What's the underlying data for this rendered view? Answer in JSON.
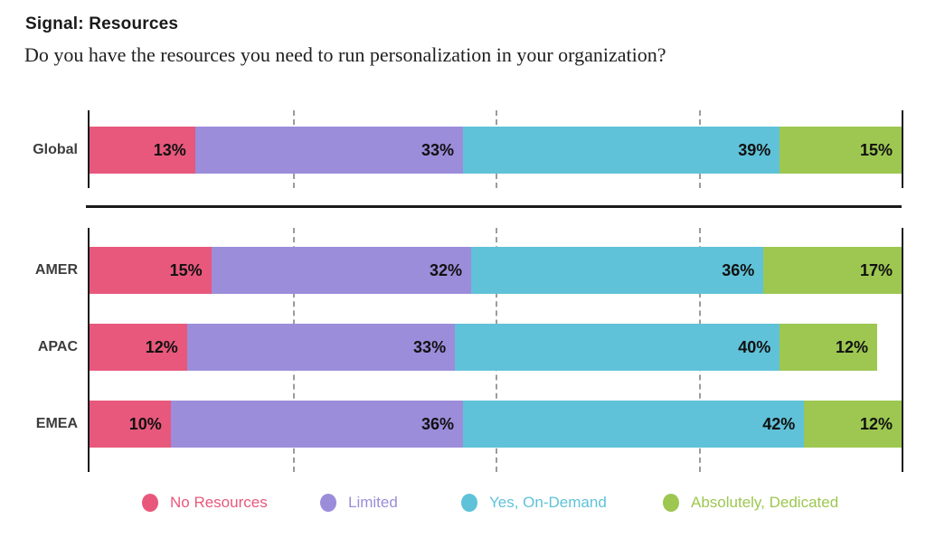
{
  "title": "Signal: Resources",
  "subtitle": "Do you have the resources you need to run personalization in your organization?",
  "chart_data": {
    "type": "bar",
    "variant": "stacked-horizontal",
    "unit": "%",
    "xlim": [
      0,
      100
    ],
    "grid": "dashed-vertical",
    "gridlines_percent": [
      25,
      50,
      75
    ],
    "title": "Signal: Resources",
    "xlabel": "",
    "ylabel": "",
    "categories": [
      "Global",
      "AMER",
      "APAC",
      "EMEA"
    ],
    "groups": [
      [
        "Global"
      ],
      [
        "AMER",
        "APAC",
        "EMEA"
      ]
    ],
    "series": [
      {
        "name": "No Resources",
        "color": "#E8587C",
        "values": [
          13,
          15,
          12,
          10
        ]
      },
      {
        "name": "Limited",
        "color": "#9B8DDA",
        "values": [
          33,
          32,
          33,
          36
        ]
      },
      {
        "name": "Yes, On-Demand",
        "color": "#5FC2D8",
        "values": [
          39,
          36,
          40,
          42
        ]
      },
      {
        "name": "Absolutely, Dedicated",
        "color": "#9DC751",
        "values": [
          15,
          17,
          12,
          12
        ]
      }
    ],
    "value_label_format": "{value}%",
    "legend": {
      "position": "bottom",
      "labels": [
        "No Resources",
        "Limited",
        "Yes, On-Demand",
        "Absolutely, Dedicated"
      ]
    }
  },
  "colors": {
    "axis": "#1a1a1a",
    "separator": "#1a1a1a",
    "gridline": "#9c9c9c",
    "value_label": "#111111",
    "category_label": "#3d3d3d",
    "background": "#ffffff"
  }
}
